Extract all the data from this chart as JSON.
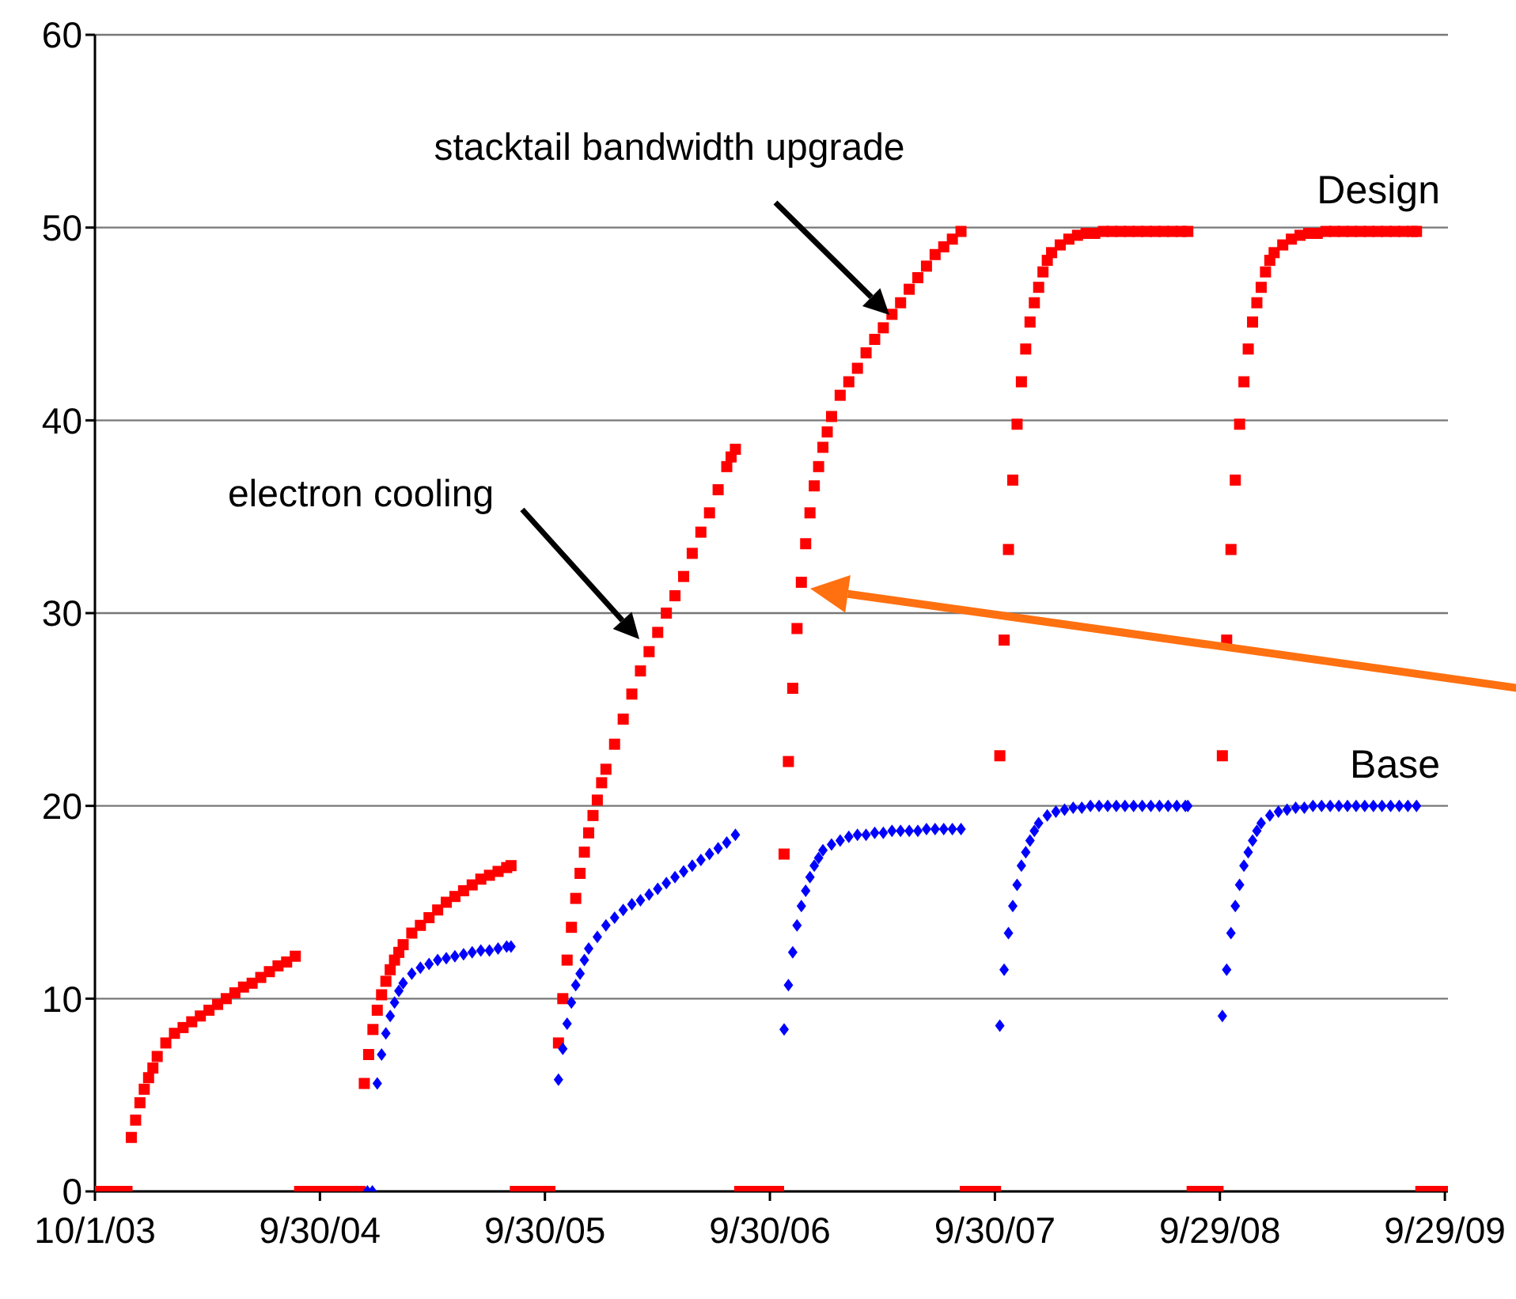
{
  "chart_data": {
    "type": "scatter",
    "xlim": [
      "2003-10-01",
      "2009-10-04"
    ],
    "xticks": [
      {
        "value": "2003-10-01",
        "label": "10/1/03"
      },
      {
        "value": "2004-09-30",
        "label": "9/30/04"
      },
      {
        "value": "2005-09-30",
        "label": "9/30/05"
      },
      {
        "value": "2006-09-30",
        "label": "9/30/06"
      },
      {
        "value": "2007-09-30",
        "label": "9/30/07"
      },
      {
        "value": "2008-09-29",
        "label": "9/29/08"
      },
      {
        "value": "2009-09-29",
        "label": "9/29/09"
      }
    ],
    "ylim": [
      0,
      60
    ],
    "yticks": [
      0,
      10,
      20,
      30,
      40,
      50,
      60
    ],
    "grid": "y",
    "legend": false,
    "annotations": [
      "electron cooling",
      "stacktail bandwidth upgrade"
    ],
    "series": [
      {
        "name": "Design",
        "color": "#ff0000",
        "marker": "square",
        "x": [
          "2003-10-01",
          "2003-10-15",
          "2003-10-29",
          "2003-11-12",
          "2003-11-22",
          "2003-11-29",
          "2003-12-06",
          "2003-12-13",
          "2003-12-20",
          "2003-12-27",
          "2004-01-03",
          "2004-01-10",
          "2004-01-24",
          "2004-02-07",
          "2004-02-21",
          "2004-03-06",
          "2004-03-20",
          "2004-04-03",
          "2004-04-17",
          "2004-05-01",
          "2004-05-15",
          "2004-05-29",
          "2004-06-12",
          "2004-06-26",
          "2004-07-10",
          "2004-07-24",
          "2004-08-07",
          "2004-08-21",
          "2004-08-28",
          "2004-09-11",
          "2004-09-25",
          "2004-10-09",
          "2004-10-23",
          "2004-11-06",
          "2004-11-20",
          "2004-12-04",
          "2004-12-11",
          "2004-12-18",
          "2004-12-25",
          "2005-01-01",
          "2005-01-08",
          "2005-01-15",
          "2005-01-22",
          "2005-01-29",
          "2005-02-05",
          "2005-02-12",
          "2005-02-26",
          "2005-03-12",
          "2005-03-26",
          "2005-04-09",
          "2005-04-23",
          "2005-05-07",
          "2005-05-21",
          "2005-06-04",
          "2005-06-18",
          "2005-07-02",
          "2005-07-16",
          "2005-07-30",
          "2005-08-06",
          "2005-08-13",
          "2005-08-27",
          "2005-09-10",
          "2005-09-24",
          "2005-10-08",
          "2005-10-22",
          "2005-10-29",
          "2005-11-05",
          "2005-11-12",
          "2005-11-19",
          "2005-11-26",
          "2005-12-03",
          "2005-12-10",
          "2005-12-17",
          "2005-12-24",
          "2005-12-31",
          "2006-01-07",
          "2006-01-21",
          "2006-02-04",
          "2006-02-18",
          "2006-03-04",
          "2006-03-18",
          "2006-04-01",
          "2006-04-15",
          "2006-04-29",
          "2006-05-13",
          "2006-05-27",
          "2006-06-10",
          "2006-06-24",
          "2006-07-08",
          "2006-07-22",
          "2006-07-29",
          "2006-08-05",
          "2006-08-12",
          "2006-08-26",
          "2006-09-09",
          "2006-09-23",
          "2006-10-07",
          "2006-10-14",
          "2006-10-23",
          "2006-10-30",
          "2006-11-06",
          "2006-11-13",
          "2006-11-20",
          "2006-11-27",
          "2006-12-04",
          "2006-12-11",
          "2006-12-18",
          "2006-12-25",
          "2007-01-01",
          "2007-01-08",
          "2007-01-22",
          "2007-02-05",
          "2007-02-19",
          "2007-03-05",
          "2007-03-19",
          "2007-04-02",
          "2007-04-16",
          "2007-04-30",
          "2007-05-14",
          "2007-05-28",
          "2007-06-11",
          "2007-06-25",
          "2007-07-09",
          "2007-07-23",
          "2007-08-06",
          "2007-08-13",
          "2007-08-27",
          "2007-09-10",
          "2007-09-24",
          "2007-10-01",
          "2007-10-08",
          "2007-10-15",
          "2007-10-22",
          "2007-10-29",
          "2007-11-05",
          "2007-11-12",
          "2007-11-19",
          "2007-11-26",
          "2007-12-03",
          "2007-12-10",
          "2007-12-17",
          "2007-12-24",
          "2007-12-31",
          "2008-01-14",
          "2008-01-28",
          "2008-02-11",
          "2008-02-25",
          "2008-03-10",
          "2008-03-24",
          "2008-04-07",
          "2008-04-21",
          "2008-05-05",
          "2008-05-19",
          "2008-06-02",
          "2008-06-16",
          "2008-06-30",
          "2008-07-14",
          "2008-07-28",
          "2008-08-08",
          "2008-08-15",
          "2008-08-29",
          "2008-09-12",
          "2008-09-26",
          "2008-10-03",
          "2008-10-10",
          "2008-10-17",
          "2008-10-24",
          "2008-10-31",
          "2008-11-07",
          "2008-11-14",
          "2008-11-21",
          "2008-11-28",
          "2008-12-05",
          "2008-12-12",
          "2008-12-19",
          "2008-12-26",
          "2009-01-09",
          "2009-01-23",
          "2009-02-06",
          "2009-02-20",
          "2009-03-06",
          "2009-03-20",
          "2009-04-03",
          "2009-04-17",
          "2009-05-01",
          "2009-05-15",
          "2009-05-29",
          "2009-06-12",
          "2009-06-26",
          "2009-07-10",
          "2009-07-24",
          "2009-08-07",
          "2009-08-14",
          "2009-08-21",
          "2009-09-04",
          "2009-09-18",
          "2009-10-01"
        ],
        "values": [
          0,
          0,
          0,
          0,
          0,
          2.8,
          3.7,
          4.6,
          5.3,
          5.9,
          6.4,
          7.0,
          7.7,
          8.2,
          8.5,
          8.8,
          9.1,
          9.4,
          9.7,
          10.0,
          10.3,
          10.6,
          10.8,
          11.1,
          11.4,
          11.7,
          11.9,
          12.2,
          0,
          0,
          0,
          0,
          0,
          0,
          0,
          0,
          5.6,
          7.1,
          8.4,
          9.4,
          10.2,
          10.9,
          11.5,
          12.0,
          12.4,
          12.8,
          13.4,
          13.8,
          14.2,
          14.6,
          15.0,
          15.3,
          15.6,
          15.9,
          16.2,
          16.4,
          16.6,
          16.8,
          16.9,
          0,
          0,
          0,
          0,
          0,
          7.7,
          10.0,
          12.0,
          13.7,
          15.2,
          16.5,
          17.6,
          18.6,
          19.5,
          20.3,
          21.2,
          21.9,
          23.2,
          24.5,
          25.8,
          27.0,
          28.0,
          29.0,
          30.0,
          30.9,
          31.9,
          33.1,
          34.2,
          35.2,
          36.4,
          37.6,
          38.1,
          38.5,
          0,
          0,
          0,
          0,
          0,
          0,
          17.5,
          22.3,
          26.1,
          29.2,
          31.6,
          33.6,
          35.2,
          36.6,
          37.6,
          38.6,
          39.4,
          40.2,
          41.3,
          42.0,
          42.7,
          43.5,
          44.2,
          44.8,
          45.5,
          46.1,
          46.8,
          47.4,
          48.0,
          48.6,
          49.0,
          49.4,
          49.8,
          0,
          0,
          0,
          0,
          0,
          22.6,
          28.6,
          33.3,
          36.9,
          39.8,
          42.0,
          43.7,
          45.1,
          46.1,
          46.9,
          47.7,
          48.3,
          48.7,
          49.1,
          49.4,
          49.6,
          49.7,
          49.7,
          49.8,
          49.8,
          49.8,
          49.8,
          49.8,
          49.8,
          49.8,
          49.8,
          49.8,
          49.8,
          49.8,
          0,
          0,
          0,
          0,
          22.6,
          28.6,
          33.3,
          36.9,
          39.8,
          42.0,
          43.7,
          45.1,
          46.1,
          46.9,
          47.7,
          48.3,
          48.7,
          49.1,
          49.4,
          49.6,
          49.7,
          49.7,
          49.8,
          49.8,
          49.8,
          49.8,
          49.8,
          49.8,
          49.8,
          49.8,
          49.8,
          49.8,
          49.8,
          49.8,
          0,
          0,
          0,
          0
        ]
      },
      {
        "name": "Base",
        "color": "#0000ff",
        "marker": "diamond",
        "x": [
          "2004-12-16",
          "2004-12-24",
          "2005-01-01",
          "2005-01-08",
          "2005-01-15",
          "2005-01-22",
          "2005-01-29",
          "2005-02-05",
          "2005-02-12",
          "2005-02-26",
          "2005-03-12",
          "2005-03-26",
          "2005-04-09",
          "2005-04-23",
          "2005-05-07",
          "2005-05-21",
          "2005-06-04",
          "2005-06-18",
          "2005-07-02",
          "2005-07-16",
          "2005-07-30",
          "2005-08-06",
          "2005-10-22",
          "2005-10-29",
          "2005-11-05",
          "2005-11-12",
          "2005-11-19",
          "2005-11-26",
          "2005-12-03",
          "2005-12-10",
          "2005-12-24",
          "2006-01-07",
          "2006-01-21",
          "2006-02-04",
          "2006-02-18",
          "2006-03-04",
          "2006-03-18",
          "2006-04-01",
          "2006-04-15",
          "2006-04-29",
          "2006-05-13",
          "2006-05-27",
          "2006-06-10",
          "2006-06-24",
          "2006-07-08",
          "2006-07-22",
          "2006-08-05",
          "2006-10-23",
          "2006-10-30",
          "2006-11-06",
          "2006-11-13",
          "2006-11-20",
          "2006-11-27",
          "2006-12-04",
          "2006-12-11",
          "2006-12-18",
          "2006-12-25",
          "2007-01-08",
          "2007-01-22",
          "2007-02-05",
          "2007-02-19",
          "2007-03-05",
          "2007-03-19",
          "2007-04-02",
          "2007-04-16",
          "2007-04-30",
          "2007-05-14",
          "2007-05-28",
          "2007-06-11",
          "2007-06-25",
          "2007-07-09",
          "2007-07-23",
          "2007-08-06",
          "2007-10-08",
          "2007-10-15",
          "2007-10-22",
          "2007-10-29",
          "2007-11-05",
          "2007-11-12",
          "2007-11-19",
          "2007-11-26",
          "2007-12-03",
          "2007-12-10",
          "2007-12-24",
          "2008-01-07",
          "2008-01-21",
          "2008-02-04",
          "2008-02-18",
          "2008-03-03",
          "2008-03-17",
          "2008-03-31",
          "2008-04-14",
          "2008-04-28",
          "2008-05-12",
          "2008-05-26",
          "2008-06-09",
          "2008-06-23",
          "2008-07-07",
          "2008-07-21",
          "2008-08-04",
          "2008-08-08",
          "2008-10-03",
          "2008-10-10",
          "2008-10-17",
          "2008-10-24",
          "2008-10-31",
          "2008-11-07",
          "2008-11-14",
          "2008-11-21",
          "2008-11-28",
          "2008-12-05",
          "2008-12-19",
          "2009-01-02",
          "2009-01-16",
          "2009-01-30",
          "2009-02-13",
          "2009-02-27",
          "2009-03-13",
          "2009-03-27",
          "2009-04-10",
          "2009-04-24",
          "2009-05-08",
          "2009-05-22",
          "2009-06-05",
          "2009-06-19",
          "2009-07-03",
          "2009-07-17",
          "2009-07-31",
          "2009-08-14"
        ],
        "values": [
          0,
          0,
          5.6,
          7.1,
          8.2,
          9.1,
          9.8,
          10.4,
          10.8,
          11.3,
          11.6,
          11.8,
          12.0,
          12.1,
          12.2,
          12.3,
          12.4,
          12.5,
          12.5,
          12.6,
          12.7,
          12.7,
          5.8,
          7.4,
          8.7,
          9.8,
          10.7,
          11.3,
          12.0,
          12.6,
          13.2,
          13.8,
          14.2,
          14.6,
          14.9,
          15.1,
          15.4,
          15.7,
          16.0,
          16.3,
          16.6,
          16.9,
          17.2,
          17.5,
          17.8,
          18.1,
          18.5,
          8.4,
          10.7,
          12.4,
          13.8,
          14.8,
          15.6,
          16.3,
          16.9,
          17.3,
          17.7,
          18.0,
          18.2,
          18.4,
          18.5,
          18.5,
          18.6,
          18.6,
          18.7,
          18.7,
          18.7,
          18.7,
          18.8,
          18.8,
          18.8,
          18.8,
          18.8,
          8.6,
          11.5,
          13.4,
          14.8,
          15.9,
          16.9,
          17.6,
          18.2,
          18.7,
          19.1,
          19.5,
          19.7,
          19.8,
          19.9,
          19.9,
          20.0,
          20.0,
          20.0,
          20.0,
          20.0,
          20.0,
          20.0,
          20.0,
          20.0,
          20.0,
          20.0,
          20.0,
          20.0,
          9.1,
          11.5,
          13.4,
          14.8,
          15.9,
          16.9,
          17.6,
          18.2,
          18.7,
          19.1,
          19.5,
          19.7,
          19.8,
          19.9,
          19.9,
          20.0,
          20.0,
          20.0,
          20.0,
          20.0,
          20.0,
          20.0,
          20.0,
          20.0,
          20.0,
          20.0,
          20.0,
          20.0
        ]
      }
    ]
  }
}
